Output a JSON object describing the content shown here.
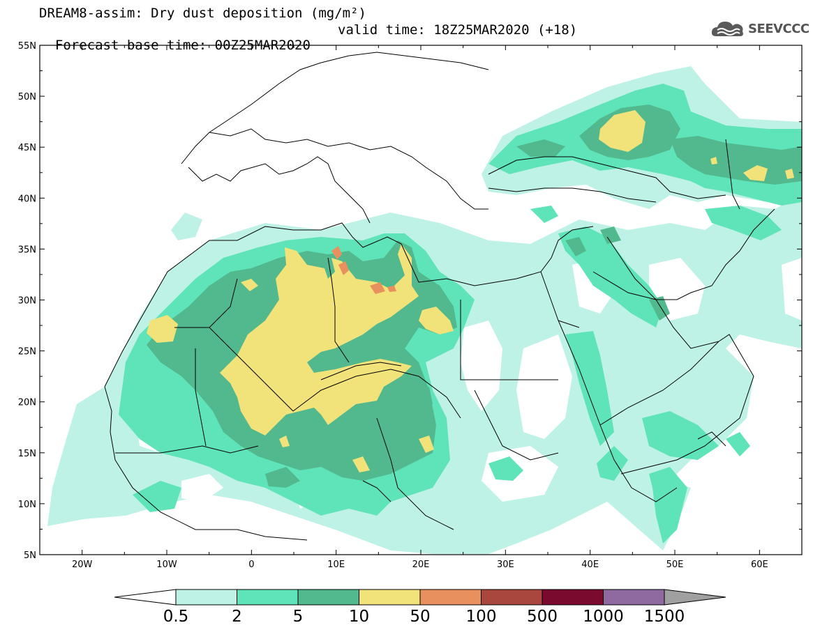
{
  "title": {
    "line1": "DREAM8-assim: Dry dust deposition (mg/m²)",
    "base_time": "Forecast base time: 00Z25MAR2020",
    "valid_time": "valid time: 18Z25MAR2020 (+18)"
  },
  "brand": {
    "name": "SEEVCCC",
    "icon": "cloud-logo-icon"
  },
  "map": {
    "lon_range": [
      -25,
      65
    ],
    "lat_range": [
      5,
      55
    ],
    "lat_labels": [
      "55N",
      "50N",
      "45N",
      "40N",
      "35N",
      "30N",
      "25N",
      "20N",
      "15N",
      "10N",
      "5N"
    ],
    "lon_labels": [
      "20W",
      "10W",
      "0",
      "10E",
      "20E",
      "30E",
      "40E",
      "50E",
      "60E"
    ]
  },
  "colorbar": {
    "labels": [
      "0.5",
      "2",
      "5",
      "10",
      "50",
      "100",
      "500",
      "1000",
      "1500"
    ],
    "colors": [
      "#bff2e6",
      "#5fe3b8",
      "#52b98e",
      "#f2e27a",
      "#e8915f",
      "#a9473f",
      "#7a0a2e",
      "#8e6aa0"
    ],
    "under_color": "#ffffff",
    "over_color": "#a0a0a0"
  }
}
